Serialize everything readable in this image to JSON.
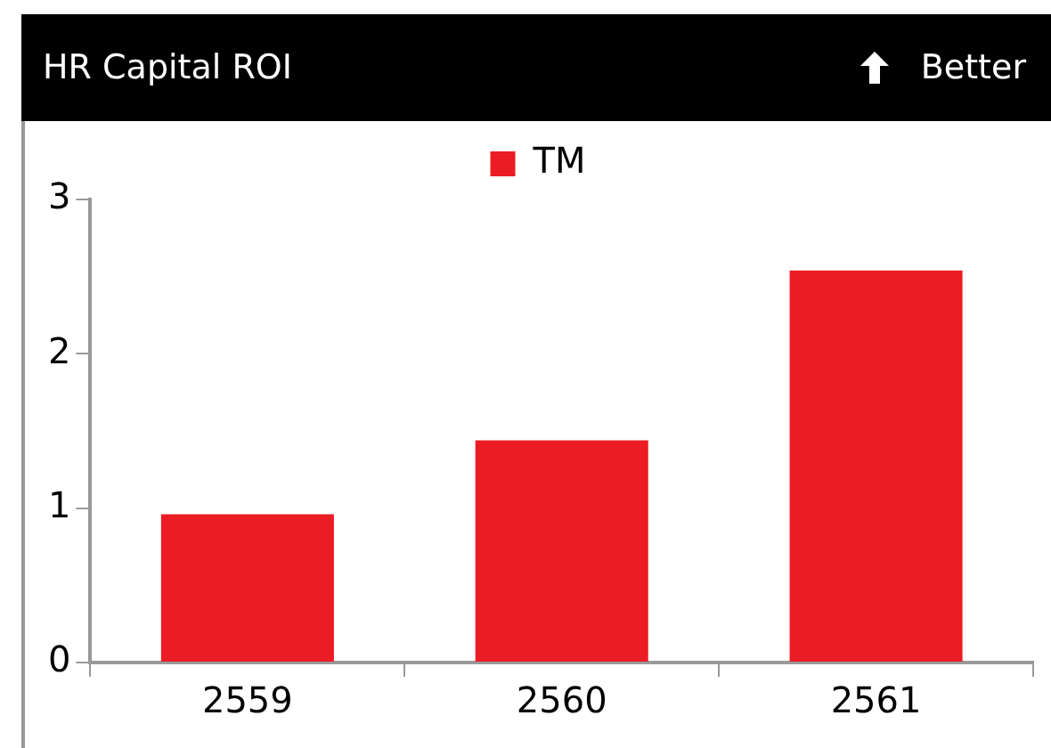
{
  "chart_data": {
    "type": "bar",
    "title": "HR Capital ROI",
    "annotations": [
      "Better"
    ],
    "categories": [
      "2559",
      "2560",
      "2561"
    ],
    "series": [
      {
        "name": "TM",
        "color": "#ec1c24",
        "values": [
          0.96,
          1.44,
          2.54
        ]
      }
    ],
    "ylim": [
      0,
      3
    ],
    "yticks": [
      0,
      1,
      2,
      3
    ],
    "grid": false,
    "legend": "top"
  }
}
